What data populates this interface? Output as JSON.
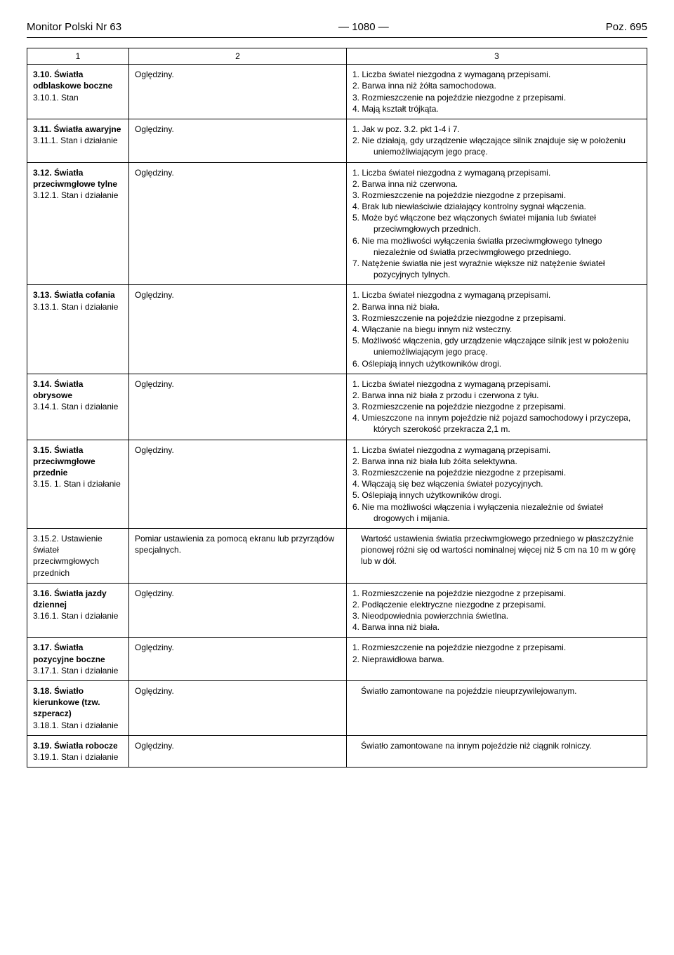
{
  "header": {
    "left": "Monitor Polski Nr 63",
    "center": "—  1080  —",
    "right": "Poz. 695"
  },
  "columns": {
    "c1": "1",
    "c2": "2",
    "c3": "3"
  },
  "rows": [
    {
      "col1_title": "3.10. Światła odblaskowe boczne",
      "col1_sub": "3.10.1. Stan",
      "col2": "Oględziny.",
      "col3": [
        "1. Liczba świateł niezgodna z wymaganą przepisami.",
        "2. Barwa inna niż żółta samochodowa.",
        "3. Rozmieszczenie na pojeździe niezgodne z przepisami.",
        "4. Mają kształt trójkąta."
      ]
    },
    {
      "col1_title": "3.11. Światła awaryjne",
      "col1_sub": "3.11.1. Stan i działanie",
      "col2": "Oględziny.",
      "col3": [
        "1. Jak w poz. 3.2. pkt 1-4 i 7.",
        "2. Nie działają, gdy urządzenie włączające silnik znajduje się w położeniu uniemożliwiającym jego pracę."
      ]
    },
    {
      "col1_title": "3.12. Światła przeciwmgłowe tylne",
      "col1_sub": "3.12.1. Stan i działanie",
      "col2": "Oględziny.",
      "col3": [
        "1. Liczba świateł niezgodna z wymaganą przepisami.",
        "2. Barwa inna niż czerwona.",
        "3. Rozmieszczenie na pojeździe niezgodne z przepisami.",
        "4. Brak lub niewłaściwie działający kontrolny sygnał włączenia.",
        "5. Może być włączone bez włączonych świateł mijania lub świateł przeciwmgłowych przednich.",
        "6. Nie ma możliwości wyłączenia światła przeciwmgłowego tylnego niezależnie od światła przeciwmgłowego przedniego.",
        "7. Natężenie światła nie jest wyraźnie większe niż natężenie świateł pozycyjnych tylnych."
      ]
    },
    {
      "col1_title": "3.13. Światła cofania",
      "col1_sub": "3.13.1. Stan i działanie",
      "col2": "Oględziny.",
      "col3": [
        "1. Liczba świateł niezgodna z wymaganą przepisami.",
        "2. Barwa inna niż biała.",
        "3. Rozmieszczenie na pojeździe niezgodne z przepisami.",
        "4. Włączanie na biegu innym niż wsteczny.",
        "5. Możliwość włączenia, gdy urządzenie włączające silnik jest w położeniu uniemożliwiającym jego pracę.",
        "6. Oślepiają innych użytkowników drogi."
      ]
    },
    {
      "col1_title": "3.14. Światła obrysowe",
      "col1_sub": "3.14.1. Stan i działanie",
      "col2": "Oględziny.",
      "col3": [
        "1. Liczba świateł niezgodna z wymaganą przepisami.",
        "2. Barwa inna niż biała z przodu i czerwona z tyłu.",
        "3. Rozmieszczenie na pojeździe niezgodne z przepisami.",
        "4. Umieszczone na innym pojeździe niż pojazd samochodowy i przyczepa, których szerokość przekracza 2,1 m."
      ]
    },
    {
      "col1_title": "3.15. Światła przeciwmgłowe przednie",
      "col1_sub": "3.15. 1. Stan i działanie",
      "col2": "Oględziny.",
      "col3": [
        "1. Liczba świateł niezgodna z wymaganą przepisami.",
        "2. Barwa inna niż biała lub żółta selektywna.",
        "3. Rozmieszczenie na pojeździe niezgodne z przepisami.",
        "4. Włączają się bez włączenia świateł pozycyjnych.",
        "5. Oślepiają innych użytkowników drogi.",
        "6. Nie ma możliwości włączenia i wyłączenia niezależnie od świateł drogowych i mijania."
      ]
    },
    {
      "col1_title": "",
      "col1_sub": "3.15.2. Ustawienie świateł przeciwmgłowych przednich",
      "col2": "Pomiar ustawienia za pomocą ekranu lub przyrządów specjalnych.",
      "col3": [
        "Wartość ustawienia światła przeciwmgłowego przedniego w płaszczyźnie pionowej różni się od wartości nominalnej więcej niż 5 cm na 10 m w górę lub w dół."
      ]
    },
    {
      "col1_title": "3.16. Światła jazdy dziennej",
      "col1_sub": "3.16.1. Stan i działanie",
      "col2": "Oględziny.",
      "col3": [
        "1. Rozmieszczenie na pojeździe niezgodne z przepisami.",
        "2. Podłączenie elektryczne niezgodne z przepisami.",
        "3. Nieodpowiednia powierzchnia świetlna.",
        "4. Barwa inna niż biała."
      ]
    },
    {
      "col1_title": "3.17. Światła pozycyjne boczne",
      "col1_sub": "3.17.1. Stan i działanie",
      "col2": "Oględziny.",
      "col3": [
        "1. Rozmieszczenie na pojeździe niezgodne z przepisami.",
        "2. Nieprawidłowa barwa."
      ]
    },
    {
      "col1_title": "3.18. Światło kierunkowe (tzw. szperacz)",
      "col1_sub": "3.18.1. Stan i działanie",
      "col2": "Oględziny.",
      "col3": [
        "Światło zamontowane na pojeździe nieuprzywilejowanym."
      ]
    },
    {
      "col1_title": "3.19. Światła robocze",
      "col1_sub": "3.19.1. Stan i działanie",
      "col2": "Oględziny.",
      "col3": [
        "Światło zamontowane na innym pojeździe niż ciągnik rolniczy."
      ]
    }
  ]
}
